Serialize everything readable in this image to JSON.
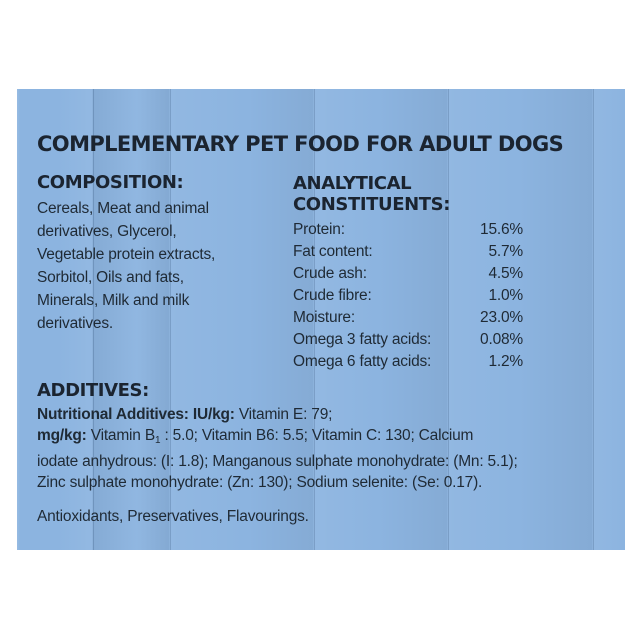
{
  "headline": "COMPLEMENTARY PET FOOD FOR ADULT DOGS",
  "composition": {
    "heading": "COMPOSITION:",
    "lines": [
      "Cereals, Meat and animal",
      "derivatives, Glycerol,",
      "Vegetable protein extracts,",
      "Sorbitol, Oils and fats,",
      "Minerals, Milk and milk",
      "derivatives."
    ]
  },
  "analytical": {
    "heading_line1": "ANALYTICAL",
    "heading_line2": "CONSTITUENTS:",
    "rows": [
      {
        "name": "Protein:",
        "value": "15.6%"
      },
      {
        "name": "Fat content:",
        "value": "5.7%"
      },
      {
        "name": "Crude ash:",
        "value": "4.5%"
      },
      {
        "name": "Crude fibre:",
        "value": "1.0%"
      },
      {
        "name": "Moisture:",
        "value": "23.0%"
      },
      {
        "name": "Omega 3 fatty acids:",
        "value": "0.08%"
      },
      {
        "name": "Omega 6 fatty acids:",
        "value": "1.2%"
      }
    ]
  },
  "additives": {
    "heading": "ADDITIVES:",
    "nutritional_label": "Nutritional Additives: IU/kg:",
    "vitamin_e": " Vitamin E: 79;",
    "mgkg_label": "mg/kg:",
    "vitamin_b_prefix": " Vitamin B",
    "vitamin_b_subscript": "1",
    "line2_rest": " : 5.0; Vitamin B6: 5.5; Vitamin C: 130; Calcium",
    "line3": "iodate anhydrous: (I: 1.8); Manganous sulphate monohydrate: (Mn: 5.1);",
    "line4": "Zinc sulphate monohydrate: (Zn: 130); Sodium selenite: (Se: 0.17).",
    "extras": "Antioxidants, Preservatives, Flavourings."
  },
  "colors": {
    "panel_blue": "#8cb4e0",
    "text_dark": "#1f2a35"
  }
}
